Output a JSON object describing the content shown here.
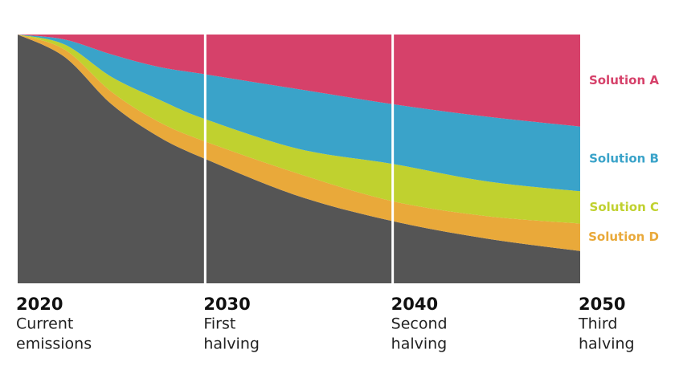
{
  "chart_data": {
    "type": "stacked-area",
    "x": [
      2020,
      2022.5,
      2025,
      2027.5,
      2030,
      2035,
      2040,
      2045,
      2050
    ],
    "series": [
      {
        "color": "#555555",
        "values": [
          100,
          91,
          72,
          59,
          50,
          35,
          25,
          18,
          13
        ]
      },
      {
        "name": "Solution D",
        "color": "#e9a93a",
        "values": [
          0,
          3,
          5,
          6,
          7,
          9,
          8,
          9,
          11
        ]
      },
      {
        "name": "Solution C",
        "color": "#c0d12f",
        "values": [
          0,
          2,
          6,
          9,
          9,
          10,
          15,
          14,
          13
        ]
      },
      {
        "name": "Solution B",
        "color": "#3aa3c9",
        "values": [
          0,
          2,
          9,
          13,
          18,
          24,
          24,
          26,
          26
        ]
      },
      {
        "name": "Solution A",
        "color": "#d6416a",
        "values": [
          0,
          2,
          8,
          13,
          16,
          22,
          28,
          33,
          37
        ]
      }
    ],
    "xlim": [
      2020,
      2050
    ],
    "ylim": [
      0,
      100
    ],
    "xticks": [
      2020,
      2030,
      2040,
      2050
    ],
    "xtick_captions": [
      [
        "Current",
        "emissions"
      ],
      [
        "First",
        "halving"
      ],
      [
        "Second",
        "halving"
      ],
      [
        "Third",
        "halving"
      ]
    ],
    "grid": true
  }
}
